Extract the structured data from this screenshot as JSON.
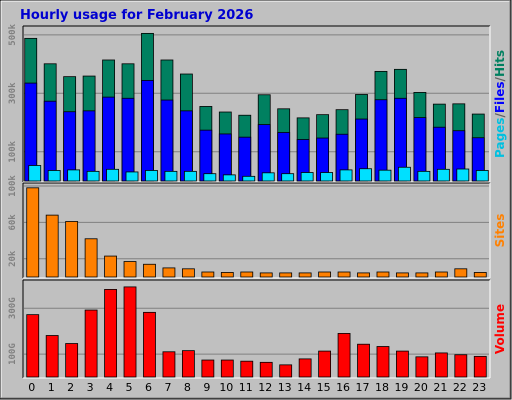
{
  "chart_data": {
    "type": "bar",
    "title": "Hourly usage for February 2026",
    "colors": {
      "background": "#C0C0C0",
      "title": "#0000D0",
      "hits": "#008060",
      "files": "#0000FF",
      "pages": "#00E0FF",
      "sites": "#FF8000",
      "volume": "#FF0000"
    },
    "x": [
      "0",
      "1",
      "2",
      "3",
      "4",
      "5",
      "6",
      "7",
      "8",
      "9",
      "10",
      "11",
      "12",
      "13",
      "14",
      "15",
      "16",
      "17",
      "18",
      "19",
      "20",
      "21",
      "22",
      "23"
    ],
    "panels": [
      {
        "id": "hits-files-pages",
        "yticks": [
          {
            "label": "500k",
            "value": 500000
          },
          {
            "label": "300k",
            "value": 300000
          },
          {
            "label": "100k",
            "value": 100000
          }
        ],
        "ylim": [
          0,
          520000
        ],
        "label_parts": [
          {
            "text": "Pages",
            "color": "#00C0E0"
          },
          {
            "text": "/",
            "color": "#606060"
          },
          {
            "text": "Files",
            "color": "#0000FF"
          },
          {
            "text": "/",
            "color": "#606060"
          },
          {
            "text": "Hits",
            "color": "#008060"
          }
        ],
        "series": [
          {
            "key": "hits",
            "color": "#008060",
            "values": [
              488000,
              401000,
              357000,
              359000,
              414000,
              401000,
              505000,
              414000,
              366000,
              255000,
              236000,
              225000,
              295000,
              247000,
              216000,
              227000,
              244000,
              296000,
              375000,
              382000,
              303000,
              263000,
              264000,
              229000
            ]
          },
          {
            "key": "files",
            "color": "#0000FF",
            "values": [
              335000,
              273000,
              237000,
              240000,
              287000,
              283000,
              344000,
              277000,
              240000,
              174000,
              161000,
              150000,
              193000,
              166000,
              142000,
              147000,
              160000,
              212000,
              278000,
              283000,
              217000,
              184000,
              172000,
              148000
            ]
          },
          {
            "key": "pages",
            "color": "#00E0FF",
            "values": [
              53000,
              36000,
              38000,
              33000,
              40000,
              31000,
              36000,
              33000,
              33000,
              25000,
              21000,
              16000,
              28000,
              25000,
              29000,
              29000,
              38000,
              42000,
              37000,
              47000,
              33000,
              40000,
              41000,
              36000
            ]
          }
        ]
      },
      {
        "id": "sites",
        "yticks": [
          {
            "label": "100k",
            "value": 100000
          },
          {
            "label": "60k",
            "value": 60000
          },
          {
            "label": "20k",
            "value": 20000
          }
        ],
        "ylim": [
          0,
          100000
        ],
        "label_parts": [
          {
            "text": "Sites",
            "color": "#FF8000"
          }
        ],
        "series": [
          {
            "key": "sites",
            "color": "#FF8000",
            "values": [
              98000,
              68000,
              61000,
              42000,
              23000,
              17000,
              14000,
              10000,
              9000,
              5500,
              5000,
              5500,
              4500,
              4500,
              4500,
              5500,
              5500,
              4500,
              5500,
              4500,
              4500,
              5500,
              9000,
              5000
            ]
          }
        ]
      },
      {
        "id": "volume",
        "yticks": [
          {
            "label": "300G",
            "value": 300
          },
          {
            "label": "100G",
            "value": 100
          }
        ],
        "ylim": [
          0,
          410
        ],
        "label_parts": [
          {
            "text": "Volume",
            "color": "#FF0000"
          }
        ],
        "series": [
          {
            "key": "volume",
            "color": "#FF0000",
            "values": [
              272,
              181,
              146,
              292,
              382,
              393,
              282,
              110,
              115,
              74,
              74,
              69,
              64,
              53,
              79,
              113,
              190,
              143,
              133,
              113,
              88,
              105,
              97,
              90
            ]
          }
        ]
      }
    ]
  }
}
